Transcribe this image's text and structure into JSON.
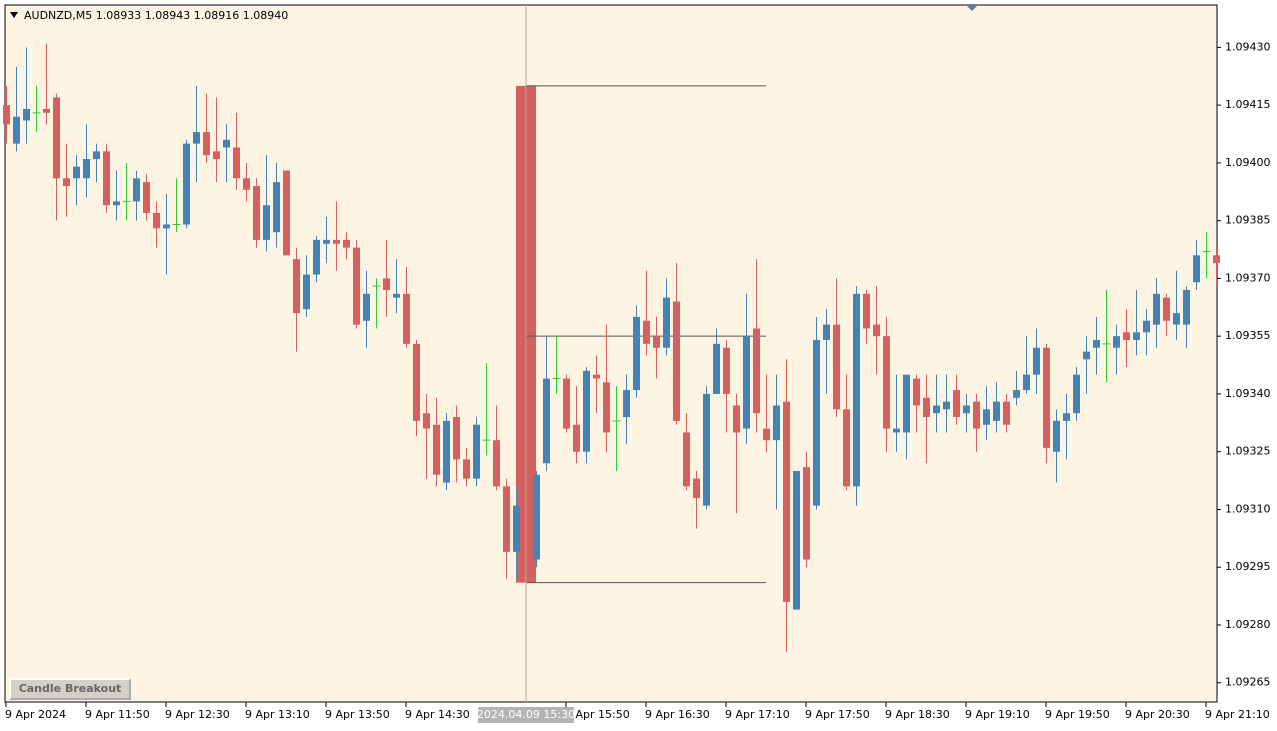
{
  "chart_data": {
    "type": "candlestick",
    "title": "AUDNZD,M5  1.08933 1.08943 1.08916 1.08940",
    "button": "Candle Breakout",
    "up_color": "#4682b4",
    "down_color": "#d65f5f",
    "doji_color": "#32cd32",
    "xlim": [
      -0.1,
      121.1
    ],
    "ylim": [
      1.0926,
      1.09441
    ],
    "yticks": [
      1.09265,
      {
        "value": 1.0928,
        "label": "1.09280"
      },
      1.09295,
      {
        "value": 1.0931,
        "label": "1.09310"
      },
      1.09325,
      {
        "value": 1.0934,
        "label": "1.09340"
      },
      1.09355,
      {
        "value": 1.0937,
        "label": "1.09370"
      },
      1.09385,
      {
        "value": 1.094,
        "label": "1.09400"
      },
      1.09415,
      {
        "value": 1.0943,
        "label": "1.09430"
      }
    ],
    "xticks": [
      {
        "value": 0,
        "label": "9 Apr 2024"
      },
      {
        "value": 8,
        "label": "9 Apr 11:50"
      },
      {
        "value": 16,
        "label": "9 Apr 12:30"
      },
      {
        "value": 24,
        "label": "9 Apr 13:10"
      },
      {
        "value": 32,
        "label": "9 Apr 13:50"
      },
      {
        "value": 40,
        "label": "9 Apr 14:30"
      },
      {
        "value": 56,
        "label": "9 Apr 15:50"
      },
      {
        "value": 64,
        "label": "9 Apr 16:30"
      },
      {
        "value": 72,
        "label": "9 Apr 17:10"
      },
      {
        "value": 80,
        "label": "9 Apr 17:50"
      },
      {
        "value": 88,
        "label": "9 Apr 18:30"
      },
      {
        "value": 96,
        "label": "9 Apr 19:10"
      },
      {
        "value": 104,
        "label": "9 Apr 19:50"
      },
      {
        "value": 112,
        "label": "9 Apr 20:30"
      },
      {
        "value": 120,
        "label": "9 Apr 21:10"
      }
    ],
    "crosshair": {
      "x": 52,
      "label": "2024.04.09 15:30"
    },
    "breakout": {
      "from": 52,
      "to": 76,
      "high": 1.0942,
      "mid": 1.09355,
      "low": 1.09291,
      "color": "#d65f5f"
    },
    "open": [
      1.09415,
      1.09405,
      1.09411,
      1.09413,
      1.09414,
      1.09417,
      1.09396,
      1.09396,
      1.09396,
      1.09401,
      1.09403,
      1.09389,
      1.0939,
      1.0939,
      1.09395,
      1.09387,
      1.09383,
      1.09384,
      1.09384,
      1.09405,
      1.09408,
      1.09403,
      1.09404,
      1.09404,
      1.09396,
      1.09394,
      1.0938,
      1.09382,
      1.09398,
      1.09375,
      1.09362,
      1.09371,
      1.09379,
      1.0938,
      1.0938,
      1.09378,
      1.09359,
      1.09368,
      1.0937,
      1.09365,
      1.09366,
      1.09353,
      1.09335,
      1.09332,
      1.09317,
      1.09334,
      1.09323,
      1.09318,
      1.09328,
      1.09328,
      1.09316,
      1.09299,
      1.09311,
      1.09297,
      1.09322,
      1.09344,
      1.09344,
      1.09332,
      1.09325,
      1.09345,
      1.09343,
      1.09333,
      1.09334,
      1.09341,
      1.09359,
      1.09355,
      1.09352,
      1.09364,
      1.0933,
      1.09318,
      1.09311,
      1.0934,
      1.09352,
      1.09337,
      1.09331,
      1.09357,
      1.09331,
      1.09328,
      1.09338,
      1.09284,
      1.09321,
      1.09311,
      1.09354,
      1.09358,
      1.09336,
      1.09316,
      1.09366,
      1.09358,
      1.09355,
      1.0933,
      1.0933,
      1.09344,
      1.09339,
      1.09335,
      1.09336,
      1.09341,
      1.09335,
      1.09338,
      1.09332,
      1.09333,
      1.09338,
      1.09339,
      1.09341,
      1.09345,
      1.09352,
      1.09325,
      1.09333,
      1.09335,
      1.09349,
      1.09352,
      1.09353,
      1.09352,
      1.09356,
      1.09354,
      1.09356,
      1.09358,
      1.09365,
      1.09358,
      1.09358,
      1.09369,
      1.09377,
      1.09376
    ],
    "high": [
      1.0942,
      1.09425,
      1.0943,
      1.0942,
      1.09431,
      1.09418,
      1.09405,
      1.09402,
      1.0941,
      1.09405,
      1.09405,
      1.09398,
      1.094,
      1.09398,
      1.09397,
      1.0939,
      1.09392,
      1.09396,
      1.09406,
      1.0942,
      1.09418,
      1.09417,
      1.0941,
      1.09413,
      1.094,
      1.09396,
      1.09402,
      1.094,
      1.09398,
      1.09378,
      1.09376,
      1.09381,
      1.09386,
      1.0939,
      1.09382,
      1.0938,
      1.09372,
      1.0937,
      1.0938,
      1.09375,
      1.09373,
      1.09354,
      1.0934,
      1.09339,
      1.09335,
      1.09337,
      1.09326,
      1.09334,
      1.09348,
      1.09337,
      1.09318,
      1.09316,
      1.09312,
      1.0932,
      1.09355,
      1.09355,
      1.09345,
      1.09342,
      1.09347,
      1.0935,
      1.09358,
      1.09342,
      1.09345,
      1.09363,
      1.09372,
      1.0936,
      1.0937,
      1.09374,
      1.09335,
      1.0932,
      1.09342,
      1.09357,
      1.09354,
      1.0934,
      1.09366,
      1.09375,
      1.09345,
      1.09345,
      1.09349,
      1.0932,
      1.09325,
      1.0936,
      1.09362,
      1.0937,
      1.09345,
      1.09368,
      1.09367,
      1.09368,
      1.0936,
      1.09345,
      1.09345,
      1.09345,
      1.09345,
      1.09345,
      1.09345,
      1.09345,
      1.0934,
      1.0934,
      1.09342,
      1.09343,
      1.0934,
      1.09346,
      1.09355,
      1.09357,
      1.09353,
      1.09336,
      1.0934,
      1.09347,
      1.09355,
      1.0936,
      1.09367,
      1.09358,
      1.09362,
      1.09367,
      1.09362,
      1.0937,
      1.09366,
      1.09372,
      1.09368,
      1.0938,
      1.09382,
      1.09378
    ],
    "low": [
      1.09405,
      1.09403,
      1.09405,
      1.09408,
      1.0941,
      1.09385,
      1.09386,
      1.09389,
      1.09391,
      1.09395,
      1.09387,
      1.09385,
      1.09385,
      1.09385,
      1.09385,
      1.09378,
      1.09371,
      1.09382,
      1.09383,
      1.09395,
      1.094,
      1.09395,
      1.09395,
      1.09393,
      1.0939,
      1.09378,
      1.09377,
      1.09378,
      1.09376,
      1.09351,
      1.0936,
      1.09369,
      1.09374,
      1.09372,
      1.09375,
      1.09357,
      1.09352,
      1.09357,
      1.0936,
      1.09361,
      1.09352,
      1.09329,
      1.09318,
      1.09316,
      1.09315,
      1.09317,
      1.09316,
      1.09316,
      1.09324,
      1.09315,
      1.09292,
      1.09292,
      1.09291,
      1.09295,
      1.0932,
      1.0934,
      1.0933,
      1.09322,
      1.09322,
      1.09335,
      1.09325,
      1.0932,
      1.09327,
      1.09339,
      1.0935,
      1.09344,
      1.0935,
      1.09332,
      1.09315,
      1.09305,
      1.0931,
      1.0934,
      1.0933,
      1.09309,
      1.09327,
      1.0933,
      1.09325,
      1.0931,
      1.09273,
      1.09284,
      1.09295,
      1.0931,
      1.0934,
      1.09334,
      1.09315,
      1.09311,
      1.09353,
      1.09345,
      1.09325,
      1.09325,
      1.09323,
      1.0933,
      1.09322,
      1.0933,
      1.0933,
      1.09332,
      1.0933,
      1.09325,
      1.09328,
      1.0933,
      1.0933,
      1.09337,
      1.0934,
      1.0934,
      1.09322,
      1.09317,
      1.09323,
      1.09333,
      1.0934,
      1.09345,
      1.09343,
      1.09345,
      1.09347,
      1.0935,
      1.0935,
      1.09352,
      1.09355,
      1.09354,
      1.09352,
      1.09367,
      1.0937,
      1.09368
    ],
    "close": [
      1.0941,
      1.09412,
      1.09414,
      1.09413,
      1.09413,
      1.09396,
      1.09394,
      1.09399,
      1.09401,
      1.09403,
      1.09389,
      1.0939,
      1.0939,
      1.09396,
      1.09387,
      1.09383,
      1.09384,
      1.09384,
      1.09405,
      1.09408,
      1.09402,
      1.09401,
      1.09406,
      1.09396,
      1.09393,
      1.0938,
      1.09389,
      1.09395,
      1.09376,
      1.09361,
      1.09371,
      1.0938,
      1.0938,
      1.09379,
      1.09378,
      1.09358,
      1.09366,
      1.09368,
      1.09367,
      1.09366,
      1.09353,
      1.09333,
      1.09331,
      1.09319,
      1.09333,
      1.09323,
      1.09318,
      1.09332,
      1.09328,
      1.09316,
      1.09299,
      1.09311,
      1.09293,
      1.09319,
      1.09344,
      1.09344,
      1.09331,
      1.09325,
      1.09346,
      1.09344,
      1.0933,
      1.09333,
      1.09341,
      1.0936,
      1.09353,
      1.09352,
      1.09365,
      1.09333,
      1.09316,
      1.09313,
      1.0934,
      1.09353,
      1.0934,
      1.0933,
      1.09355,
      1.09335,
      1.09328,
      1.09337,
      1.09286,
      1.0932,
      1.09297,
      1.09354,
      1.09358,
      1.09336,
      1.09316,
      1.09366,
      1.09357,
      1.09355,
      1.09331,
      1.09331,
      1.09345,
      1.09337,
      1.09334,
      1.09337,
      1.09338,
      1.09334,
      1.09337,
      1.09331,
      1.09336,
      1.09338,
      1.09332,
      1.09341,
      1.09345,
      1.09352,
      1.09326,
      1.09333,
      1.09335,
      1.09345,
      1.09351,
      1.09354,
      1.09353,
      1.09355,
      1.09354,
      1.09356,
      1.09359,
      1.09366,
      1.09359,
      1.09361,
      1.09367,
      1.09376,
      1.09377,
      1.09374
    ]
  }
}
